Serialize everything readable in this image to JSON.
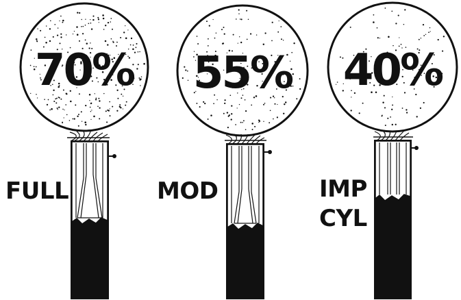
{
  "diagram": {
    "chokes": [
      {
        "percent": "70%",
        "label_lines": [
          "FULL"
        ],
        "constriction": "full"
      },
      {
        "percent": "55%",
        "label_lines": [
          "MOD"
        ],
        "constriction": "modified"
      },
      {
        "percent": "40%",
        "label_lines": [
          "IMP",
          "CYL"
        ],
        "constriction": "improved-cylinder"
      }
    ],
    "colors": {
      "ink": "#111111",
      "paper": "#ffffff"
    }
  }
}
